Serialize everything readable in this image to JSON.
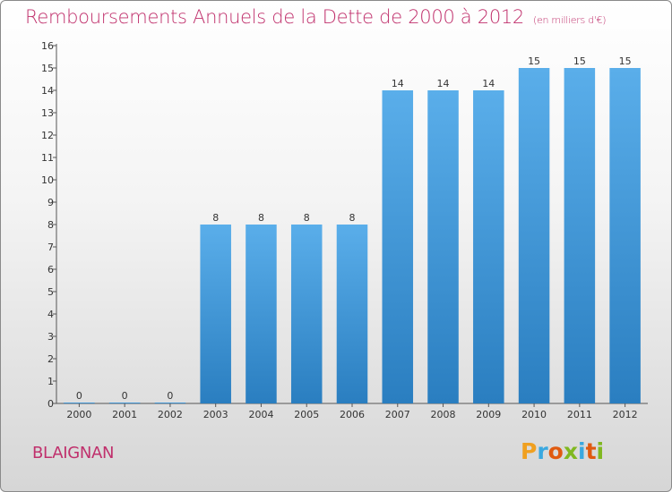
{
  "header": {
    "title": "Remboursements Annuels de la Dette de 2000 à 2012",
    "unit": "(en milliers d'€)"
  },
  "footer": {
    "commune": "BLAIGNAN",
    "logo": [
      "P",
      "r",
      "o",
      "x",
      "i",
      "t",
      "i"
    ]
  },
  "colors": {
    "accent": "#c0306c",
    "bar_top": "#5aaeea",
    "bar_bottom": "#2a7ec0",
    "logo_letters": [
      "#f0a020",
      "#3aa8e0",
      "#e05a10",
      "#80b820",
      "#3aa8e0",
      "#e05a10",
      "#80b820"
    ]
  },
  "chart_data": {
    "type": "bar",
    "categories": [
      "2000",
      "2001",
      "2002",
      "2003",
      "2004",
      "2005",
      "2006",
      "2007",
      "2008",
      "2009",
      "2010",
      "2011",
      "2012"
    ],
    "values": [
      0,
      0,
      0,
      8,
      8,
      8,
      8,
      14,
      14,
      14,
      15,
      15,
      15
    ],
    "data_labels": [
      "0",
      "0",
      "0",
      "8",
      "8",
      "8",
      "8",
      "14",
      "14",
      "14",
      "15",
      "15",
      "15"
    ],
    "y_ticks": [
      "0",
      "1",
      "2",
      "3",
      "4",
      "5",
      "6",
      "7",
      "8",
      "9",
      "10",
      "11",
      "12",
      "13",
      "14",
      "15",
      "16"
    ],
    "ylim": [
      0,
      16
    ],
    "grid": false
  }
}
